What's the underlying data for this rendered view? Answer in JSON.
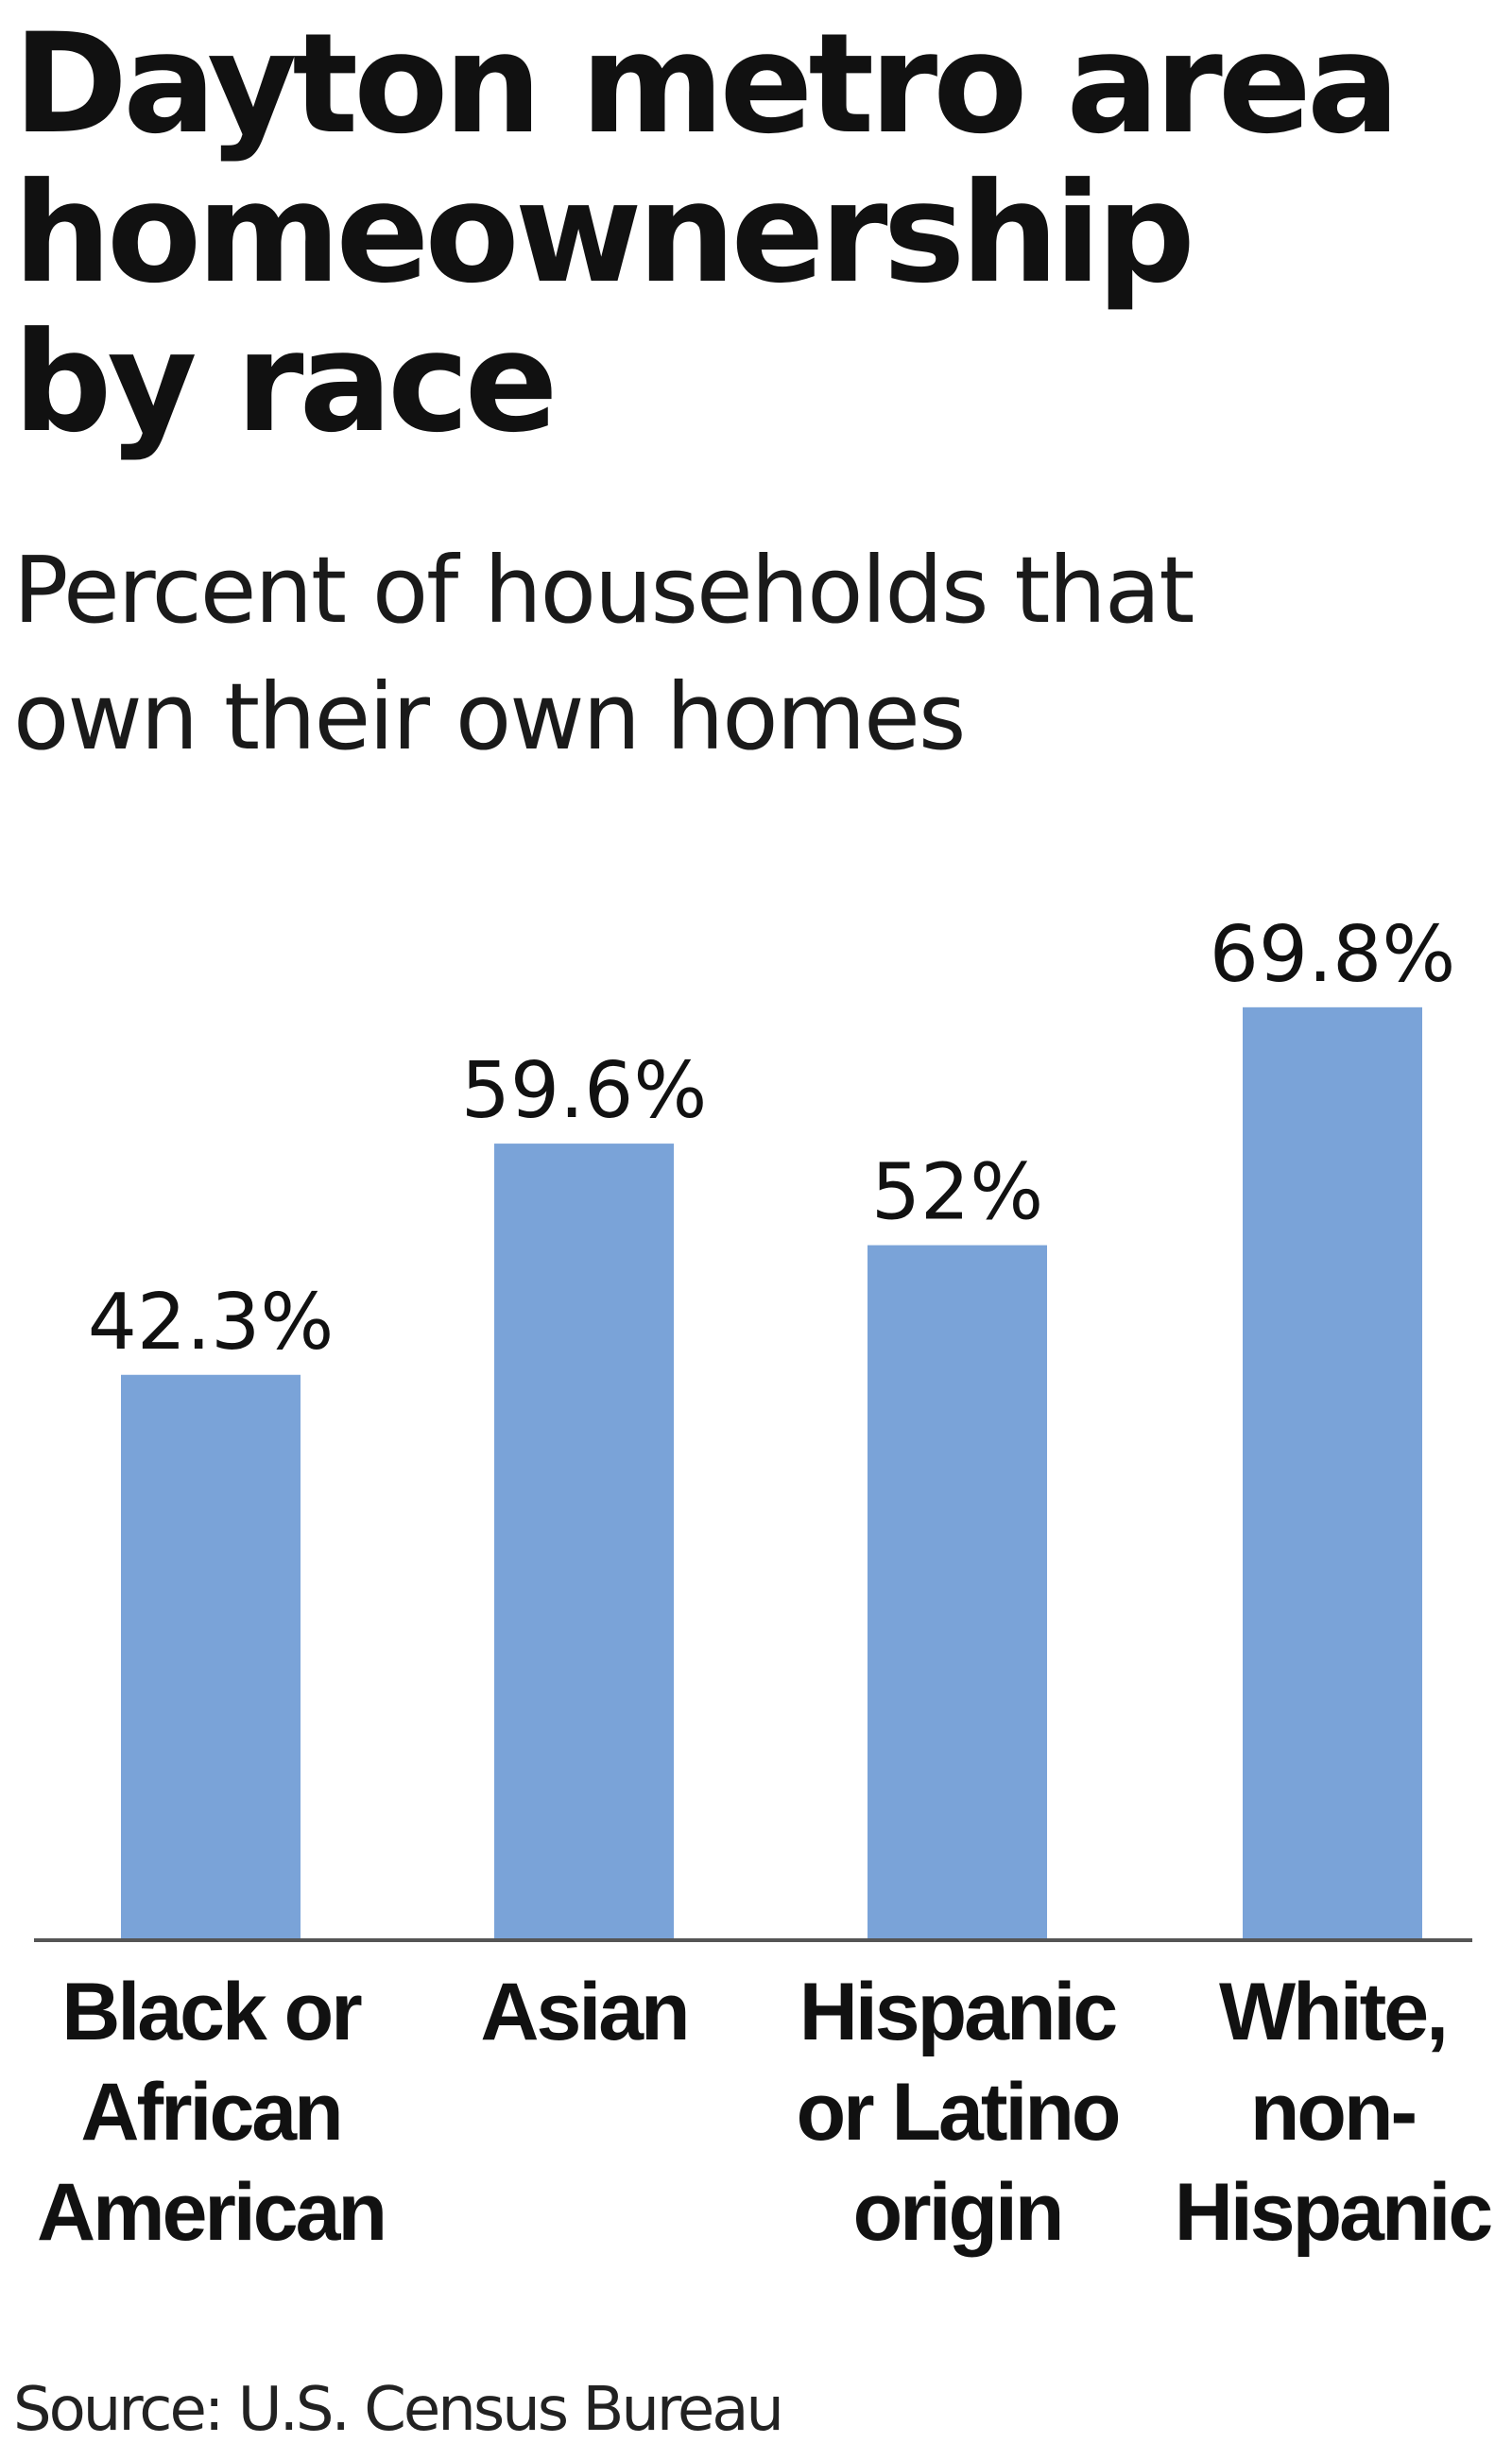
{
  "title_lines": [
    "Dayton metro area",
    "homeownership",
    "by race"
  ],
  "subtitle_lines": [
    "Percent of households that",
    "own their own homes"
  ],
  "source": "Source: U.S. Census Bureau",
  "colors": {
    "bar": "#7aa3d8",
    "baseline": "#555555",
    "text": "#111111"
  },
  "chart_data": {
    "type": "bar",
    "categories": [
      [
        "Black or",
        "African",
        "American"
      ],
      [
        "Asian"
      ],
      [
        "Hispanic",
        "or Latino",
        "origin"
      ],
      [
        "White,",
        "non-",
        "Hispanic"
      ]
    ],
    "values": [
      42.3,
      59.6,
      52,
      69.8
    ],
    "value_labels": [
      "42.3%",
      "59.6%",
      "52%",
      "69.8%"
    ],
    "unit": "%",
    "ylim": [
      0,
      70
    ],
    "grid": false,
    "legend": "none",
    "y_axis_visible": false
  }
}
